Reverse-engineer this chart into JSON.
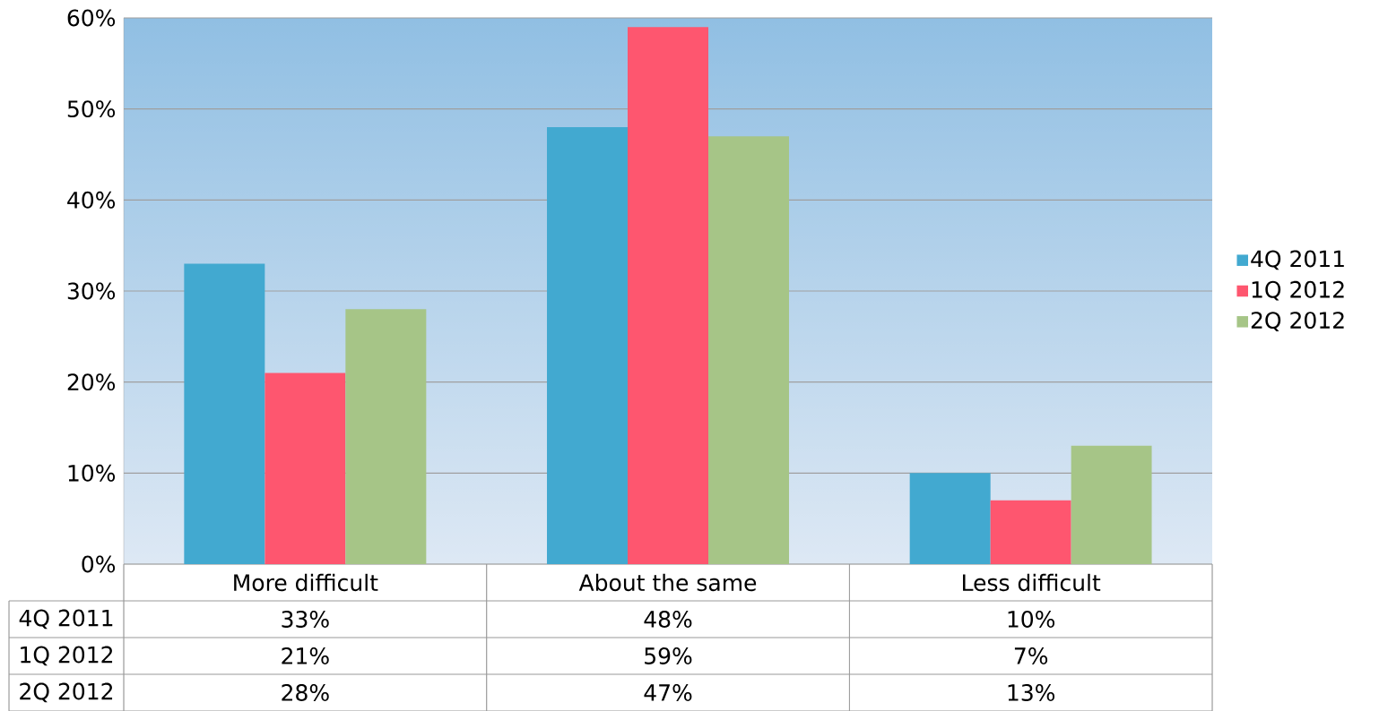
{
  "chart_data": {
    "type": "bar",
    "categories": [
      "More difficult",
      "About the same",
      "Less difficult"
    ],
    "series": [
      {
        "name": "4Q 2011",
        "color": "#42a9d0",
        "values": [
          33,
          48,
          10
        ],
        "value_labels": [
          "33%",
          "48%",
          "10%"
        ]
      },
      {
        "name": "1Q 2012",
        "color": "#fe566f",
        "values": [
          21,
          59,
          7
        ],
        "value_labels": [
          "21%",
          "59%",
          "7%"
        ]
      },
      {
        "name": "2Q 2012",
        "color": "#a6c587",
        "values": [
          28,
          47,
          13
        ],
        "value_labels": [
          "28%",
          "47%",
          "13%"
        ]
      }
    ],
    "ylim": [
      0,
      60
    ],
    "yticks": [
      {
        "value": 0,
        "label": "0%"
      },
      {
        "value": 10,
        "label": "10%"
      },
      {
        "value": 20,
        "label": "20%"
      },
      {
        "value": 30,
        "label": "30%"
      },
      {
        "value": 40,
        "label": "40%"
      },
      {
        "value": 50,
        "label": "50%"
      },
      {
        "value": 60,
        "label": "60%"
      }
    ],
    "grid": "y",
    "legend": "right"
  }
}
